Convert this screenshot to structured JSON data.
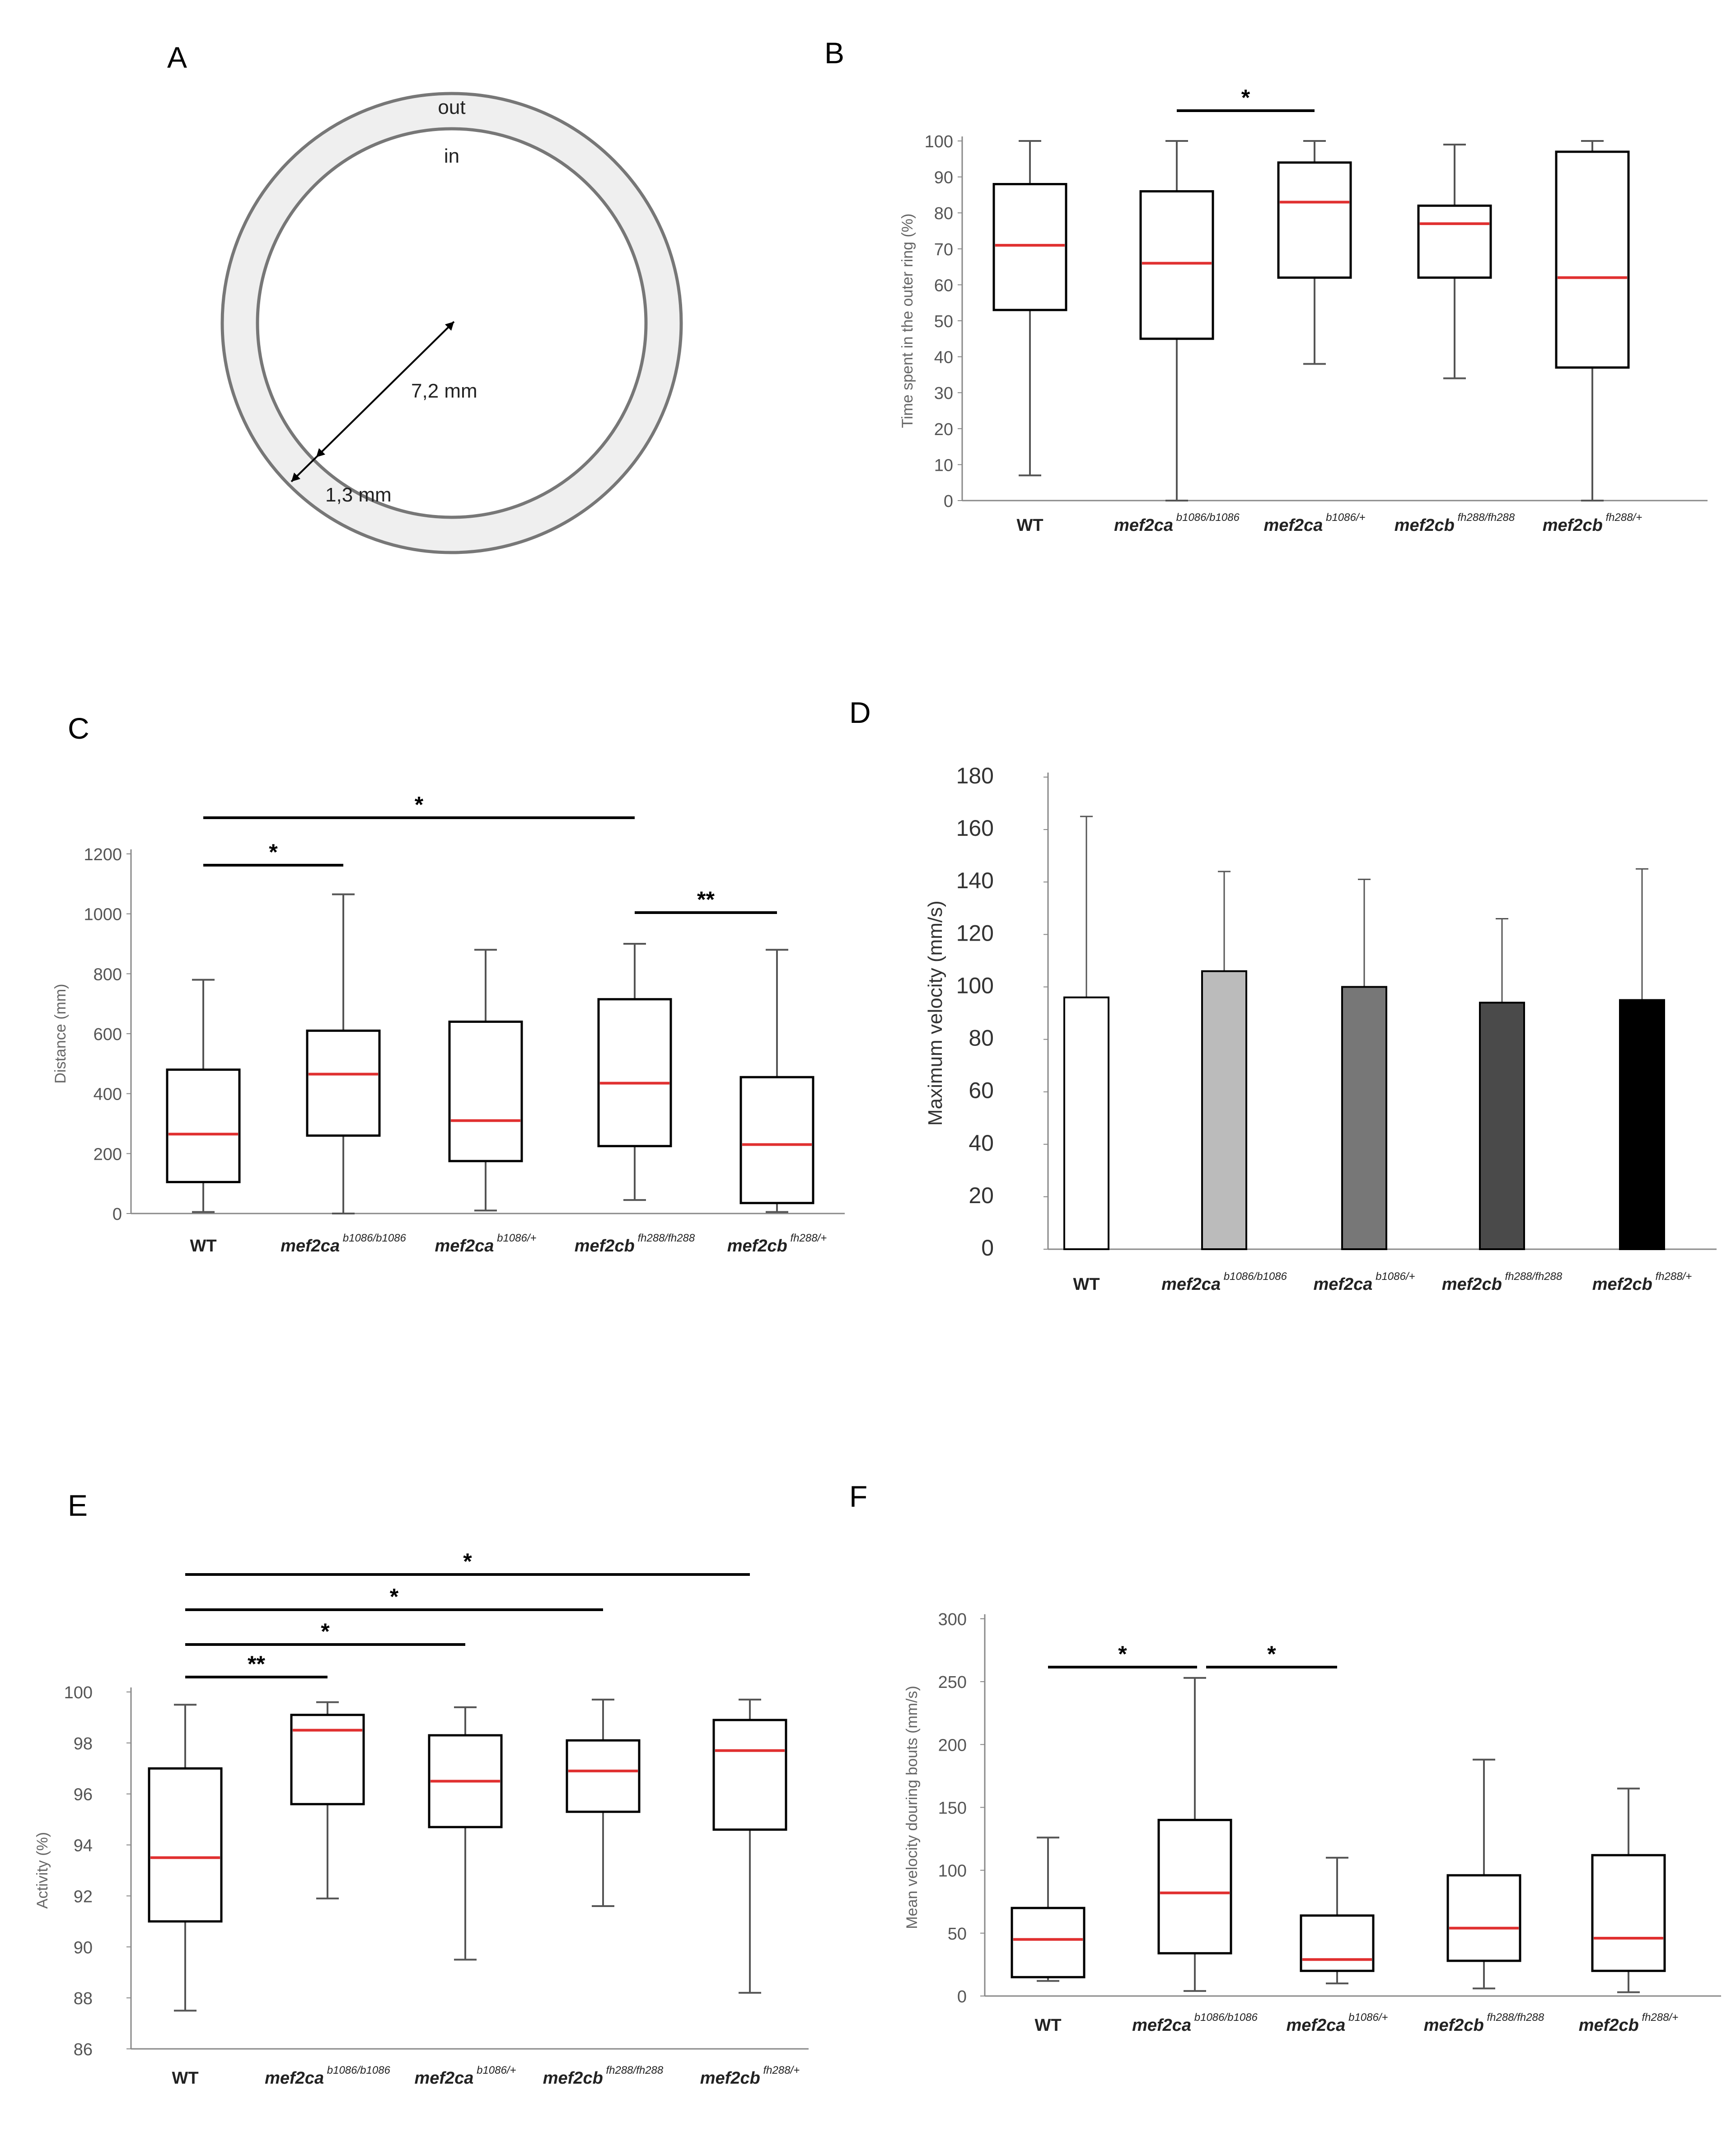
{
  "figure": {
    "panels": {
      "A": {
        "letter": "A",
        "labels": {
          "out": "out",
          "in": "in",
          "radius": "7,2 mm",
          "ring_width": "1,3 mm"
        }
      },
      "B": {
        "letter": "B"
      },
      "C": {
        "letter": "C"
      },
      "D": {
        "letter": "D"
      },
      "E": {
        "letter": "E"
      },
      "F": {
        "letter": "F"
      }
    },
    "categories": [
      {
        "base": "WT",
        "sup": "",
        "italic": false
      },
      {
        "base": "mef2ca",
        "sup": "b1086/b1086",
        "italic": true
      },
      {
        "base": "mef2ca",
        "sup": "b1086/+",
        "italic": true
      },
      {
        "base": "mef2cb",
        "sup": "fh288/fh288",
        "italic": true
      },
      {
        "base": "mef2cb",
        "sup": "fh288/+",
        "italic": true
      }
    ],
    "colors": {
      "median": "#e03030",
      "box": "#000000",
      "whisker": "#555555",
      "axis": "#888888"
    }
  },
  "chart_data": [
    {
      "panel": "B",
      "type": "box",
      "ylabel": "Time spent in the outer ring (%)",
      "ylim": [
        0,
        100
      ],
      "ticks": [
        0,
        10,
        20,
        30,
        40,
        50,
        60,
        70,
        80,
        90,
        100
      ],
      "boxes": [
        {
          "min": 7,
          "q1": 53,
          "median": 71,
          "q3": 88,
          "max": 100
        },
        {
          "min": 0,
          "q1": 45,
          "median": 66,
          "q3": 86,
          "max": 100
        },
        {
          "min": 38,
          "q1": 62,
          "median": 83,
          "q3": 94,
          "max": 100
        },
        {
          "min": 34,
          "q1": 62,
          "median": 77,
          "q3": 82,
          "max": 99
        },
        {
          "min": 0,
          "q1": 37,
          "median": 62,
          "q3": 97,
          "max": 100
        }
      ],
      "significance": [
        {
          "from": 1,
          "to": 2,
          "label": "*"
        }
      ]
    },
    {
      "panel": "C",
      "type": "box",
      "ylabel": "Distance (mm)",
      "ylim": [
        0,
        1200
      ],
      "ticks": [
        0,
        200,
        400,
        600,
        800,
        1000,
        1200
      ],
      "boxes": [
        {
          "min": 5,
          "q1": 105,
          "median": 265,
          "q3": 480,
          "max": 780
        },
        {
          "min": 0,
          "q1": 260,
          "median": 465,
          "q3": 610,
          "max": 1065
        },
        {
          "min": 10,
          "q1": 175,
          "median": 310,
          "q3": 640,
          "max": 880
        },
        {
          "min": 45,
          "q1": 225,
          "median": 435,
          "q3": 715,
          "max": 900
        },
        {
          "min": 5,
          "q1": 35,
          "median": 230,
          "q3": 455,
          "max": 880
        }
      ],
      "significance": [
        {
          "from": 0,
          "to": 3,
          "label": "*"
        },
        {
          "from": 0,
          "to": 1,
          "label": "*"
        },
        {
          "from": 3,
          "to": 4,
          "label": "**"
        }
      ]
    },
    {
      "panel": "D",
      "type": "bar",
      "ylabel": "Maximum velocity (mm/s)",
      "ylim": [
        0,
        180
      ],
      "ticks": [
        0,
        20,
        40,
        60,
        80,
        100,
        120,
        140,
        160,
        180
      ],
      "values": [
        96,
        106,
        100,
        94,
        95
      ],
      "errors": [
        69,
        38,
        41,
        32,
        50
      ],
      "fills": [
        "#ffffff",
        "#bbbbbb",
        "#777777",
        "#4a4a4a",
        "#000000"
      ]
    },
    {
      "panel": "E",
      "type": "box",
      "ylabel": "Activity (%)",
      "ylim": [
        86,
        100
      ],
      "ticks": [
        86,
        88,
        90,
        92,
        94,
        96,
        98,
        100
      ],
      "boxes": [
        {
          "min": 87.5,
          "q1": 91.0,
          "median": 93.5,
          "q3": 97.0,
          "max": 99.5
        },
        {
          "min": 91.9,
          "q1": 95.6,
          "median": 98.5,
          "q3": 99.1,
          "max": 99.6
        },
        {
          "min": 89.5,
          "q1": 94.7,
          "median": 96.5,
          "q3": 98.3,
          "max": 99.4
        },
        {
          "min": 91.6,
          "q1": 95.3,
          "median": 96.9,
          "q3": 98.1,
          "max": 99.7
        },
        {
          "min": 88.2,
          "q1": 94.6,
          "median": 97.7,
          "q3": 98.9,
          "max": 99.7
        }
      ],
      "significance": [
        {
          "from": 0,
          "to": 4,
          "label": "*"
        },
        {
          "from": 0,
          "to": 3,
          "label": "*"
        },
        {
          "from": 0,
          "to": 2,
          "label": "*"
        },
        {
          "from": 0,
          "to": 1,
          "label": "**"
        }
      ]
    },
    {
      "panel": "F",
      "type": "box",
      "ylabel": "Mean velocity douring bouts (mm/s)",
      "ylim": [
        0,
        300
      ],
      "ticks": [
        0,
        50,
        100,
        150,
        200,
        250,
        300
      ],
      "boxes": [
        {
          "min": 12,
          "q1": 15,
          "median": 45,
          "q3": 70,
          "max": 126
        },
        {
          "min": 4,
          "q1": 34,
          "median": 82,
          "q3": 140,
          "max": 253
        },
        {
          "min": 10,
          "q1": 20,
          "median": 29,
          "q3": 64,
          "max": 110
        },
        {
          "min": 6,
          "q1": 28,
          "median": 54,
          "q3": 96,
          "max": 188
        },
        {
          "min": 3,
          "q1": 20,
          "median": 46,
          "q3": 112,
          "max": 165
        }
      ],
      "significance": [
        {
          "from": 0,
          "to": 1,
          "label": "*"
        },
        {
          "from": 1,
          "to": 2,
          "label": "*"
        }
      ]
    }
  ]
}
